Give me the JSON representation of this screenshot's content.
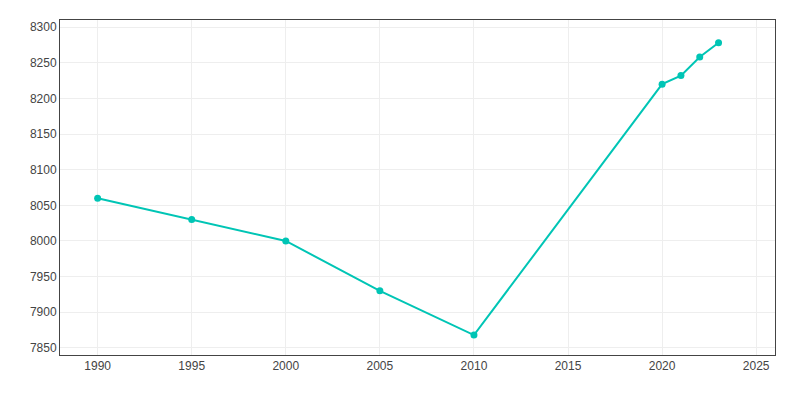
{
  "chart_data": {
    "type": "line",
    "x": [
      1990,
      1995,
      2000,
      2005,
      2010,
      2020,
      2021,
      2022,
      2023
    ],
    "values": [
      8060,
      8030,
      8000,
      7930,
      7868,
      8220,
      8232,
      8258,
      8278
    ],
    "color": "#00C5B5",
    "marker": "circle",
    "xlim": [
      1988,
      2026
    ],
    "xticks": [
      1990,
      1995,
      2000,
      2005,
      2010,
      2015,
      2020,
      2025
    ],
    "ylim": [
      7840,
      8310
    ],
    "yticks": [
      7850,
      7900,
      7950,
      8000,
      8050,
      8100,
      8150,
      8200,
      8250,
      8300
    ],
    "grid": true
  }
}
